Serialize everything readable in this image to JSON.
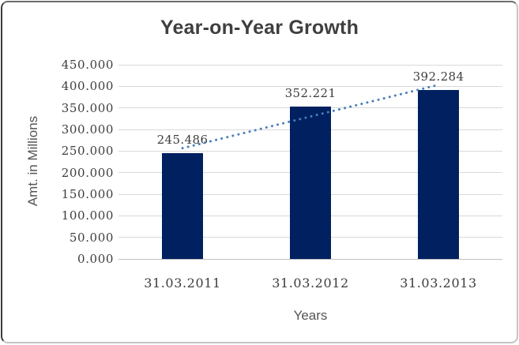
{
  "window": {
    "background": "#ffffff",
    "frame_border_dark": "#3c3c3c",
    "frame_border_light": "#c4c4c4"
  },
  "chart_data": {
    "type": "bar",
    "title": "Year-on-Year Growth",
    "xlabel": "Years",
    "ylabel": "Amt. in Millions",
    "categories": [
      "31.03.2011",
      "31.03.2012",
      "31.03.2013"
    ],
    "values": [
      245.486,
      352.221,
      392.284
    ],
    "value_labels": [
      "245.486",
      "352.221",
      "392.284"
    ],
    "ylim": [
      0,
      450
    ],
    "ytick_step": 50,
    "ytick_labels": [
      "0.000",
      "50.000",
      "100.000",
      "150.000",
      "200.000",
      "250.000",
      "300.000",
      "350.000",
      "400.000",
      "450.000"
    ],
    "grid": true,
    "legend": "none",
    "bar_color": "#002060",
    "grid_color": "#d9d9d9",
    "axis_line_color": "#c0c0c0",
    "title_color": "#3f3f3f",
    "tick_text_color": "#3d3d3d",
    "axis_title_color": "#555555",
    "trendline": {
      "type": "linear",
      "style": "dotted",
      "color": "#4a7ebb"
    }
  }
}
